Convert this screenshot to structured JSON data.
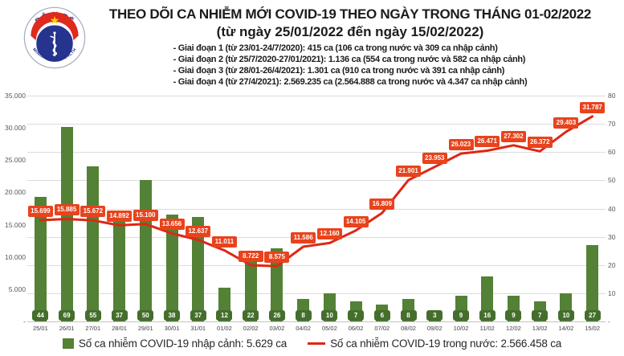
{
  "header": {
    "logo": {
      "top_text": "BỘ Y TẾ",
      "bottom_text": "MINISTRY OF HEALTH"
    },
    "title_line1": "THEO DÕI CA NHIỄM MỚI COVID-19 THEO NGÀY TRONG THÁNG 01-02/2022",
    "title_line2": "(từ ngày 25/01/2022 đến ngày 15/02/2022)",
    "phases": [
      "- Giai đoạn 1 (từ 23/01-24/7/2020): 415 ca (106 ca trong nước và 309 ca nhập cảnh)",
      "- Giai đoạn 2 (từ 25/7/2020-27/01/2021): 1.136 ca (554 ca trong nước và 582 ca nhập cảnh)",
      "- Giai đoạn 3 (từ 28/01-26/4/2021): 1.301 ca (910 ca trong nước và 391 ca nhập cảnh)",
      "- Giai đoạn 4 (từ 27/4/2021): 2.569.235 ca (2.564.888 ca trong nước và 4.347 ca nhập cảnh)"
    ]
  },
  "chart_data": {
    "type": "bar+line",
    "title": "THEO DÕI CA NHIỄM MỚI COVID-19 THEO NGÀY TRONG THÁNG 01-02/2022",
    "subtitle": "(từ ngày 25/01/2022 đến ngày 15/02/2022)",
    "categories": [
      "25/01",
      "26/01",
      "27/01",
      "28/01",
      "29/01",
      "30/01",
      "31/01",
      "01/02",
      "02/02",
      "03/02",
      "04/02",
      "05/02",
      "06/02",
      "07/02",
      "08/02",
      "09/02",
      "10/02",
      "11/02",
      "12/02",
      "13/02",
      "14/02",
      "15/02"
    ],
    "series": [
      {
        "name": "Số ca nhiễm COVID-19 nhập cảnh",
        "type": "bar",
        "axis": "right",
        "color": "#538135",
        "label_color": "#456e2d",
        "values": [
          44,
          69,
          55,
          37,
          50,
          38,
          37,
          12,
          22,
          26,
          8,
          10,
          7,
          6,
          8,
          3,
          9,
          16,
          9,
          7,
          10,
          27
        ],
        "labels": [
          "44",
          "69",
          "55",
          "37",
          "50",
          "38",
          "37",
          "12",
          "22",
          "26",
          "8",
          "10",
          "7",
          "6",
          "8",
          "3",
          "9",
          "16",
          "9",
          "7",
          "10",
          "27"
        ]
      },
      {
        "name": "Số ca nhiễm COVID-19 trong nước",
        "type": "line",
        "axis": "left",
        "color": "#e02615",
        "label_color": "#e8431c",
        "values": [
          15699,
          15885,
          15672,
          14892,
          15100,
          13656,
          12637,
          11011,
          8722,
          8575,
          11586,
          12160,
          14105,
          16809,
          21901,
          23953,
          26023,
          26471,
          27302,
          26372,
          29403,
          31787
        ],
        "labels": [
          "15.699",
          "15.885",
          "15.672",
          "14.892",
          "15.100",
          "13.656",
          "12.637",
          "11.011",
          "8.722",
          "8.575",
          "11.586",
          "12.160",
          "14.105",
          "16.809",
          "21.901",
          "23.953",
          "26.023",
          "26.471",
          "27.302",
          "26.372",
          "29.403",
          "31.787"
        ]
      }
    ],
    "left_axis": {
      "min": 0,
      "max": 35000,
      "tick_values": [
        35000,
        30000,
        25000,
        20000,
        15000,
        10000,
        5000,
        0
      ],
      "tick_labels": [
        "35.000",
        "30.000",
        "25.000",
        "20.000",
        "15.000",
        "10.000",
        "5.000",
        "-"
      ]
    },
    "right_axis": {
      "min": 0,
      "max": 80,
      "tick_values": [
        80,
        70,
        60,
        50,
        40,
        30,
        20,
        10,
        0
      ],
      "tick_labels": [
        "80",
        "70",
        "60",
        "50",
        "40",
        "30",
        "20",
        "10",
        "-"
      ]
    },
    "grid": {
      "show": true,
      "divisions": 8
    },
    "legend_position": "bottom"
  },
  "legend": {
    "items": [
      {
        "swatch": "square",
        "color": "#538135",
        "label": "Số ca nhiễm COVID-19 nhập cảnh: 5.629 ca"
      },
      {
        "swatch": "line",
        "color": "#e02615",
        "label": "Số ca nhiễm COVID-19 trong nước: 2.566.458 ca"
      }
    ]
  }
}
